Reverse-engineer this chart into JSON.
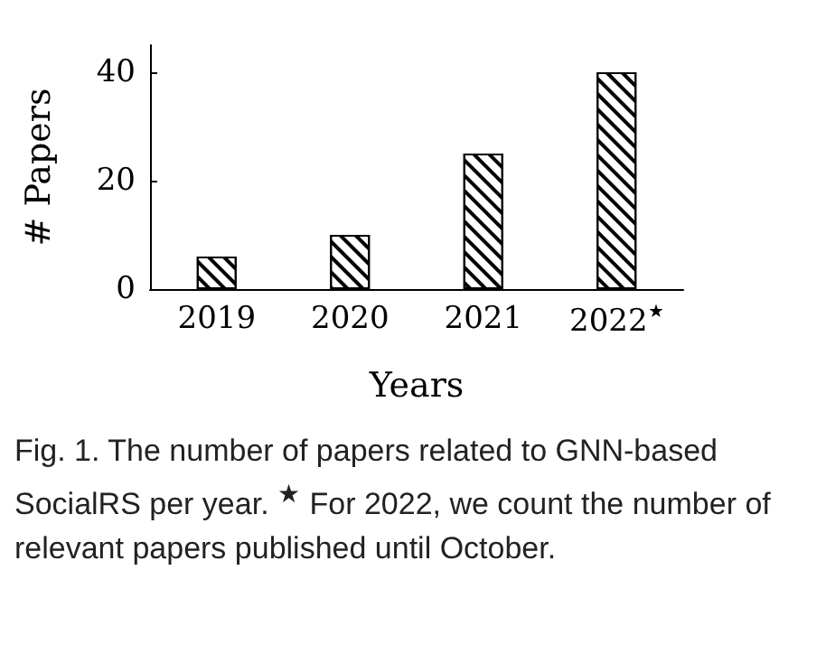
{
  "chart_data": {
    "type": "bar",
    "xlabel": "Years",
    "ylabel": "# Papers",
    "categories": [
      "2019",
      "2020",
      "2021",
      "2022$^{★}$"
    ],
    "values": [
      6,
      10,
      25,
      40
    ],
    "color": "#000000",
    "ylim": [
      0,
      45
    ],
    "yticks": [
      0,
      20,
      40
    ],
    "grid": false,
    "annotations": [
      "Fig. 1. The number of papers related to GNN-based SocialRS per year. $^{★}$ For 2022, we count the number of relevant papers published until October."
    ]
  }
}
